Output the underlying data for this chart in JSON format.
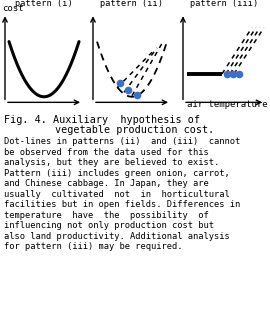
{
  "bg_color": "#ffffff",
  "title_line1": "Fig. 4. Auxiliary  hypothesis of",
  "title_line2": "      vegetable production cost.",
  "caption_lines": [
    "Dot-lines in patterns (ii)  and (iii)  cannot",
    "be observed from the data used for this",
    "analysis, but they are believed to exist.",
    "Pattern (iii) includes green onion, carrot,",
    "and Chinese cabbage. In Japan, they are",
    "usually  cultivated  not  in  horticultural",
    "facilities but in open fields. Differences in",
    "temperature  have  the  possibility  of",
    "influencing not only production cost but",
    "also land productivity. Additional analysis",
    "for pattern (iii) may be required."
  ],
  "axis_label_cost": "cost",
  "axis_label_temp": "air temperature",
  "dot_color": "#3b6fcc",
  "line_color": "#000000"
}
